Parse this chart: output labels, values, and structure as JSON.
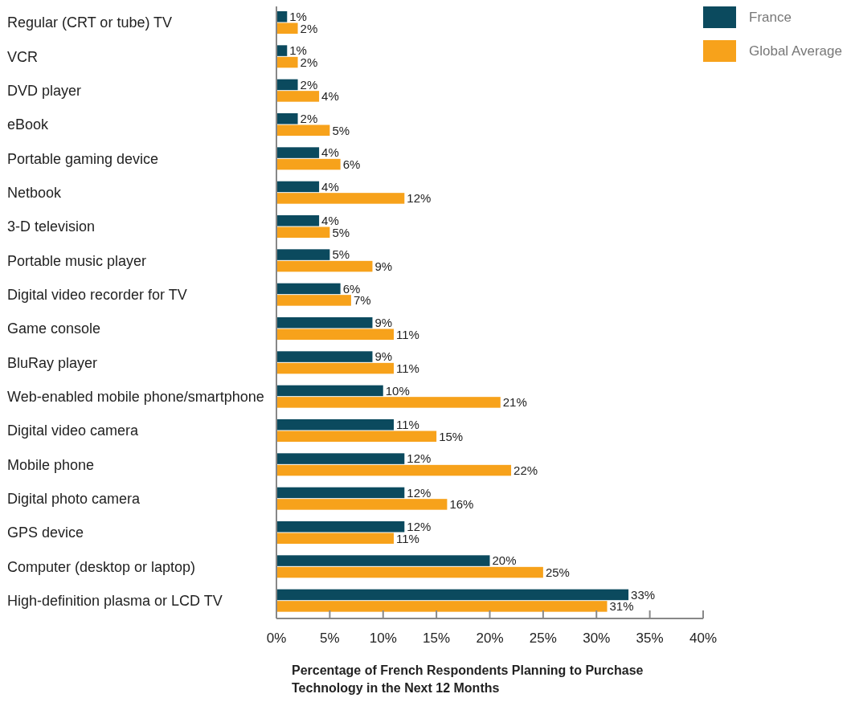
{
  "chart_data": {
    "type": "bar",
    "orientation": "horizontal",
    "categories": [
      "Regular (CRT or tube) TV",
      "VCR",
      "DVD player",
      "eBook",
      "Portable gaming device",
      "Netbook",
      "3-D television",
      "Portable music player",
      "Digital video recorder for TV",
      "Game console",
      "BluRay player",
      "Web-enabled mobile phone/smartphone",
      "Digital video camera",
      "Mobile phone",
      "Digital photo camera",
      "GPS device",
      "Computer (desktop or laptop)",
      "High-definition plasma or LCD TV"
    ],
    "series": [
      {
        "name": "France",
        "color": "#0b4a5e",
        "values": [
          1,
          1,
          2,
          2,
          4,
          4,
          4,
          5,
          6,
          9,
          9,
          10,
          11,
          12,
          12,
          12,
          20,
          33
        ],
        "value_labels": [
          "1%",
          "1%",
          "2%",
          "2%",
          "4%",
          "4%",
          "4%",
          "5%",
          "6%",
          "9%",
          "9%",
          "10%",
          "11%",
          "12%",
          "12%",
          "12%",
          "20%",
          "33%"
        ]
      },
      {
        "name": "Global Average",
        "color": "#f7a21b",
        "values": [
          2,
          2,
          4,
          5,
          6,
          12,
          5,
          9,
          7,
          11,
          11,
          21,
          15,
          22,
          16,
          11,
          25,
          31
        ],
        "value_labels": [
          "2%",
          "2%",
          "4%",
          "5%",
          "6%",
          "12%",
          "5%",
          "9%",
          "7%",
          "11%",
          "11%",
          "21%",
          "15%",
          "22%",
          "16%",
          "11%",
          "25%",
          "31%"
        ]
      }
    ],
    "xlim": [
      0,
      40
    ],
    "xticks": [
      {
        "value": 0,
        "label": "0%"
      },
      {
        "value": 5,
        "label": "5%"
      },
      {
        "value": 10,
        "label": "10%"
      },
      {
        "value": 15,
        "label": "15%"
      },
      {
        "value": 20,
        "label": "20%"
      },
      {
        "value": 25,
        "label": "25%"
      },
      {
        "value": 30,
        "label": "30%"
      },
      {
        "value": 35,
        "label": "35%"
      },
      {
        "value": 40,
        "label": "40%"
      }
    ],
    "xlabel": "Percentage of French Respondents Planning to Purchase\nTechnology in the Next 12 Months",
    "legend": "top right",
    "grid": false
  }
}
